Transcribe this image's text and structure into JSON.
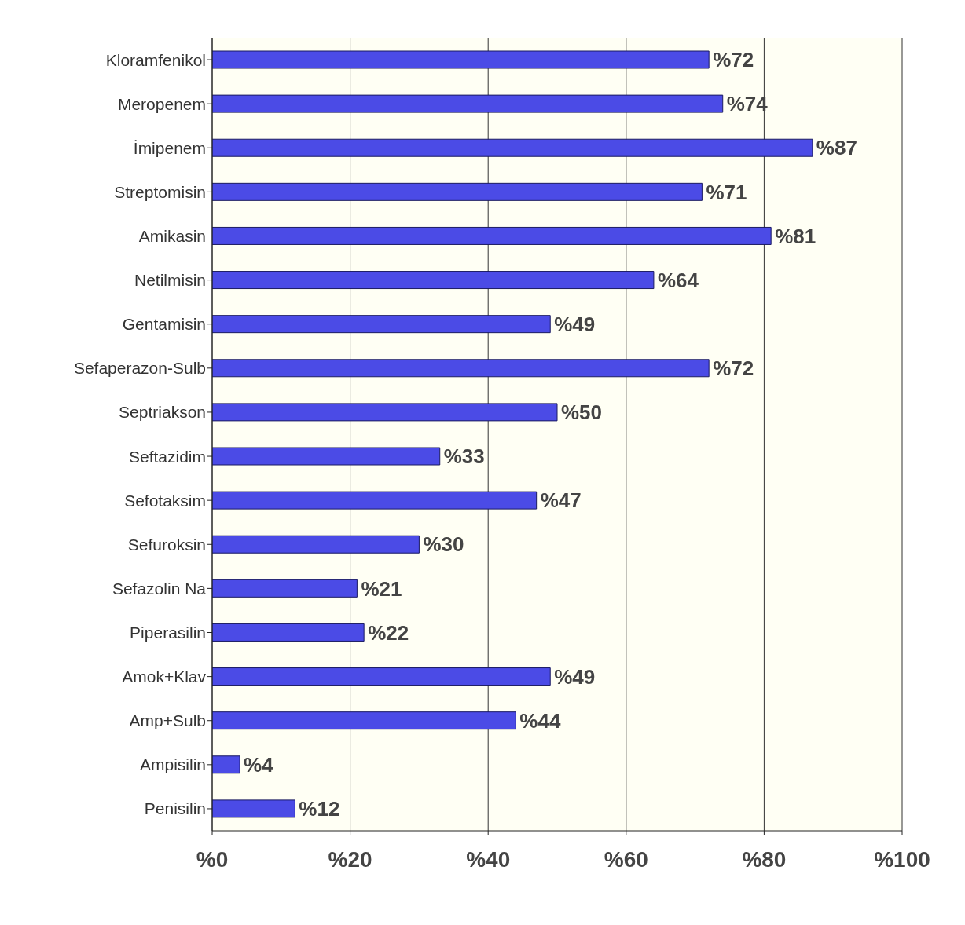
{
  "chart_data": {
    "type": "bar",
    "orientation": "horizontal",
    "categories": [
      "Kloramfenikol",
      "Meropenem",
      "İmipenem",
      "Streptomisin",
      "Amikasin",
      "Netilmisin",
      "Gentamisin",
      "Sefaperazon-Sulb",
      "Septriakson",
      "Seftazidim",
      "Sefotaksim",
      "Sefuroksin",
      "Sefazolin Na",
      "Piperasilin",
      "Amok+Klav",
      "Amp+Sulb",
      "Ampisilin",
      "Penisilin"
    ],
    "values": [
      72,
      74,
      87,
      71,
      81,
      64,
      49,
      72,
      50,
      33,
      47,
      30,
      21,
      22,
      49,
      44,
      4,
      12
    ],
    "value_labels": [
      "%72",
      "%74",
      "%87",
      "%71",
      "%81",
      "%64",
      "%49",
      "%72",
      "%50",
      "%33",
      "%47",
      "%30",
      "%21",
      "%22",
      "%49",
      "%44",
      "%4",
      "%12"
    ],
    "color": "#4b4be6",
    "xlim": [
      0,
      100
    ],
    "xticks": [
      {
        "value": 0,
        "label": "%0"
      },
      {
        "value": 20,
        "label": "%20"
      },
      {
        "value": 40,
        "label": "%40"
      },
      {
        "value": 60,
        "label": "%60"
      },
      {
        "value": 80,
        "label": "%80"
      },
      {
        "value": 100,
        "label": "%100"
      }
    ],
    "grid": "x"
  }
}
